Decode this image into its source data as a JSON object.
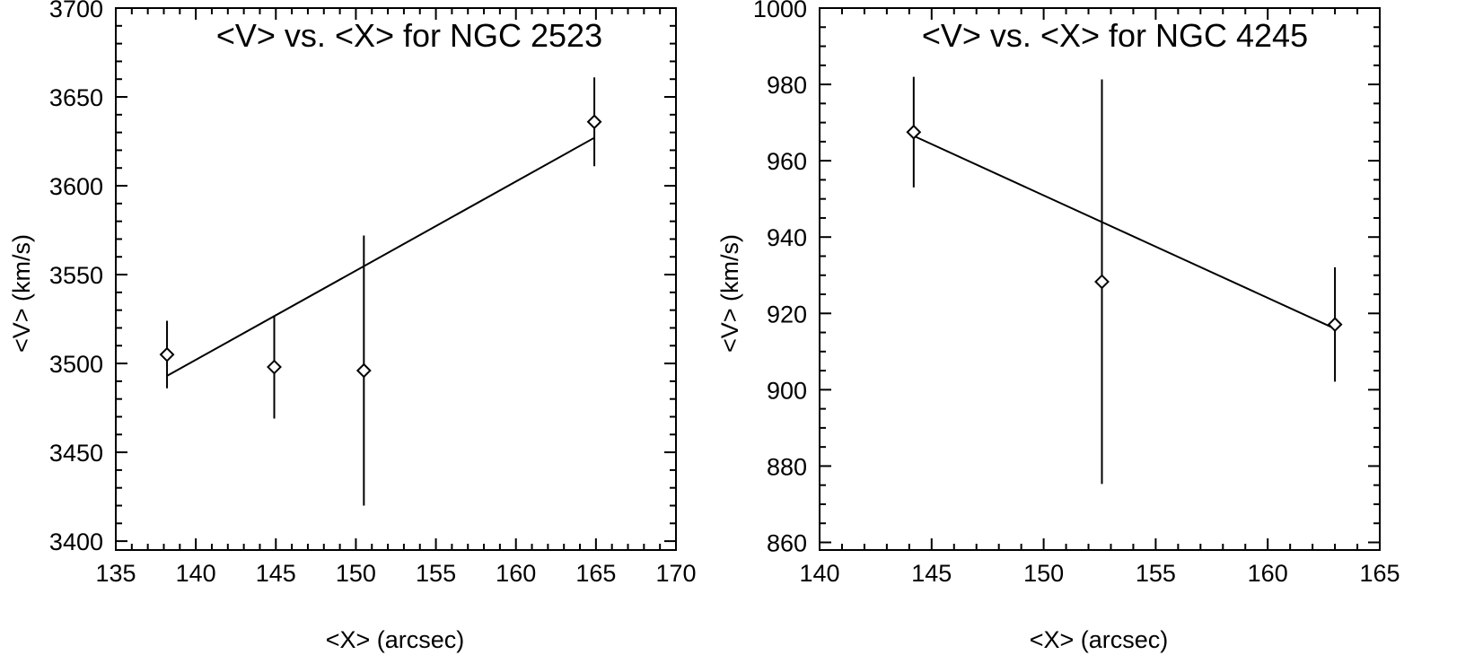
{
  "chart_data": [
    {
      "type": "scatter",
      "title": "<V> vs. <X> for NGC 2523",
      "xlabel": "<X> (arcsec)",
      "ylabel": "<V> (km/s)",
      "xlim": [
        135,
        170
      ],
      "ylim": [
        3395,
        3700
      ],
      "xticks": [
        135,
        140,
        145,
        150,
        155,
        160,
        165,
        170
      ],
      "yticks": [
        3400,
        3450,
        3500,
        3550,
        3600,
        3650,
        3700
      ],
      "xtick_labels": [
        "135",
        "140",
        "145",
        "150",
        "155",
        "160",
        "165",
        "170"
      ],
      "ytick_labels": [
        "3400",
        "3450",
        "3500",
        "3550",
        "3600",
        "3650",
        "3700"
      ],
      "marker": "diamond",
      "points": [
        {
          "x": 138.2,
          "y": 3505,
          "err": 19
        },
        {
          "x": 144.9,
          "y": 3498,
          "err": 29
        },
        {
          "x": 150.5,
          "y": 3496,
          "err": 76
        },
        {
          "x": 164.9,
          "y": 3636,
          "err": 25
        }
      ],
      "fit_line": {
        "x": [
          138.2,
          164.9
        ],
        "y": [
          3493,
          3627
        ]
      },
      "grid": false
    },
    {
      "type": "scatter",
      "title": "<V> vs. <X> for NGC 4245",
      "xlabel": "<X> (arcsec)",
      "ylabel": "<V> (km/s)",
      "xlim": [
        140,
        165
      ],
      "ylim": [
        858,
        1000
      ],
      "xticks": [
        140,
        145,
        150,
        155,
        160,
        165
      ],
      "yticks": [
        860,
        880,
        900,
        920,
        940,
        960,
        980,
        1000
      ],
      "xtick_labels": [
        "140",
        "145",
        "150",
        "155",
        "160",
        "165"
      ],
      "ytick_labels": [
        "860",
        "880",
        "900",
        "920",
        "940",
        "960",
        "980",
        "1000"
      ],
      "marker": "diamond",
      "points": [
        {
          "x": 144.2,
          "y": 967.5,
          "err": 14.5
        },
        {
          "x": 152.6,
          "y": 928.3,
          "err": 53
        },
        {
          "x": 163.0,
          "y": 917.1,
          "err": 15
        }
      ],
      "fit_line": {
        "x": [
          144.2,
          163.0
        ],
        "y": [
          966.5,
          916.0
        ]
      },
      "grid": false
    }
  ]
}
